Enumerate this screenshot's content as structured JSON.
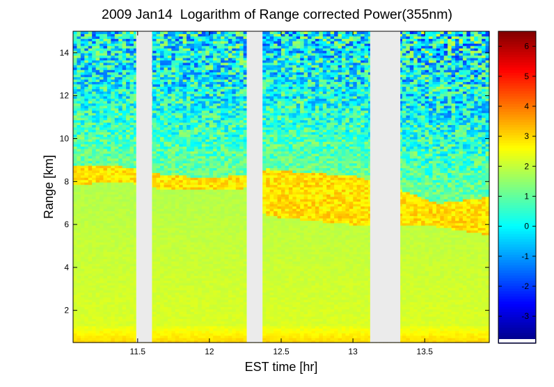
{
  "chart_data": [
    {
      "type": "heatmap",
      "title": "2009 Jan14  Logarithm of Range corrected Power(355nm)",
      "xlabel": "EST time [hr]",
      "ylabel": "Range [km]",
      "xlim": [
        11.05,
        13.95
      ],
      "ylim": [
        0.5,
        15.0
      ],
      "x_ticks": [
        11.5,
        12,
        12.5,
        13,
        13.5
      ],
      "x_tick_labels": [
        "11.5",
        "12",
        "12.5",
        "13",
        "13.5"
      ],
      "y_ticks": [
        2,
        4,
        6,
        8,
        10,
        12,
        14
      ],
      "y_tick_labels": [
        "2",
        "4",
        "6",
        "8",
        "10",
        "12",
        "14"
      ],
      "data_gaps_hr": [
        [
          11.49,
          11.6
        ],
        [
          12.26,
          12.37
        ],
        [
          13.12,
          13.33
        ]
      ],
      "cloud_layer_km": [
        {
          "x": 11.15,
          "y_top": 8.7,
          "y_base": 7.9
        },
        {
          "x": 11.4,
          "y_top": 8.7,
          "y_base": 8.0
        },
        {
          "x": 11.7,
          "y_top": 8.3,
          "y_base": 7.6
        },
        {
          "x": 12.0,
          "y_top": 8.2,
          "y_base": 7.6
        },
        {
          "x": 12.25,
          "y_top": 8.3,
          "y_base": 7.7
        },
        {
          "x": 12.4,
          "y_top": 8.6,
          "y_base": 6.4
        },
        {
          "x": 12.7,
          "y_top": 8.4,
          "y_base": 6.2
        },
        {
          "x": 13.0,
          "y_top": 8.3,
          "y_base": 6.0
        },
        {
          "x": 13.33,
          "y_top": 7.6,
          "y_base": 6.0
        },
        {
          "x": 13.6,
          "y_top": 7.0,
          "y_base": 5.9
        },
        {
          "x": 13.95,
          "y_top": 7.3,
          "y_base": 5.5
        }
      ],
      "colorscale": "jet"
    },
    {
      "type": "colorbar",
      "clim": [
        -3.9,
        6.5
      ],
      "ticks": [
        -3,
        -2,
        -1,
        0,
        1,
        2,
        3,
        4,
        5,
        6
      ],
      "tick_labels": [
        "-3",
        "-2",
        "-1",
        "0",
        "1",
        "2",
        "3",
        "4",
        "5",
        "6"
      ]
    }
  ],
  "colors": {
    "gap": "#ebebeb",
    "axis": "#000000"
  }
}
